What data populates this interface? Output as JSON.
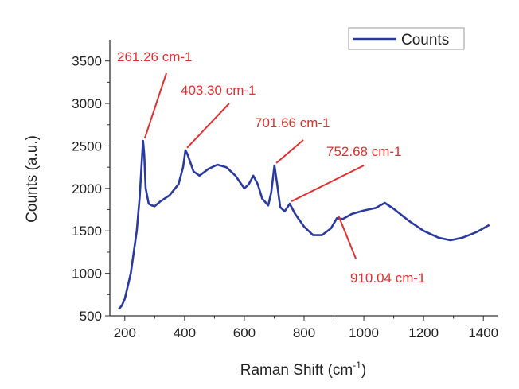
{
  "chart_data": {
    "type": "line",
    "title": "",
    "xlabel": "Raman Shift (cm",
    "xlabel_sup": "-1",
    "xlabel_end": ")",
    "ylabel": "Counts (a.u.)",
    "xlim": [
      150,
      1450
    ],
    "ylim": [
      500,
      3750
    ],
    "xticks": [
      200,
      400,
      600,
      800,
      1000,
      1200,
      1400
    ],
    "yticks": [
      500,
      1000,
      1500,
      2000,
      2500,
      3000,
      3500
    ],
    "grid": false,
    "legend_position": "top-right",
    "colors": {
      "series": "#2b3a9e",
      "annotation": "#e0302f"
    },
    "series": [
      {
        "name": "Counts",
        "x": [
          180,
          190,
          200,
          220,
          240,
          250,
          255,
          261,
          265,
          270,
          280,
          290,
          300,
          320,
          350,
          380,
          395,
          403,
          410,
          430,
          450,
          480,
          510,
          540,
          570,
          600,
          615,
          630,
          645,
          660,
          680,
          690,
          701,
          710,
          720,
          735,
          752,
          770,
          800,
          830,
          860,
          890,
          910,
          930,
          960,
          1000,
          1040,
          1070,
          1100,
          1150,
          1200,
          1250,
          1290,
          1330,
          1380,
          1420
        ],
        "y": [
          580,
          620,
          700,
          1000,
          1500,
          1900,
          2200,
          2560,
          2400,
          2000,
          1820,
          1800,
          1790,
          1850,
          1920,
          2050,
          2250,
          2450,
          2400,
          2200,
          2150,
          2230,
          2280,
          2250,
          2150,
          2000,
          2050,
          2150,
          2050,
          1880,
          1800,
          1950,
          2270,
          2050,
          1780,
          1730,
          1820,
          1700,
          1550,
          1450,
          1450,
          1530,
          1650,
          1640,
          1700,
          1740,
          1770,
          1830,
          1760,
          1620,
          1500,
          1420,
          1390,
          1420,
          1490,
          1570
        ]
      }
    ],
    "annotations": [
      {
        "label": "261.26 cm-1",
        "x": 261.26,
        "y": 2560
      },
      {
        "label": "403.30 cm-1",
        "x": 403.3,
        "y": 2450
      },
      {
        "label": "701.66 cm-1",
        "x": 701.66,
        "y": 2270
      },
      {
        "label": "752.68 cm-1",
        "x": 752.68,
        "y": 1820
      },
      {
        "label": "910.04 cm-1",
        "x": 910.04,
        "y": 1650
      }
    ]
  }
}
